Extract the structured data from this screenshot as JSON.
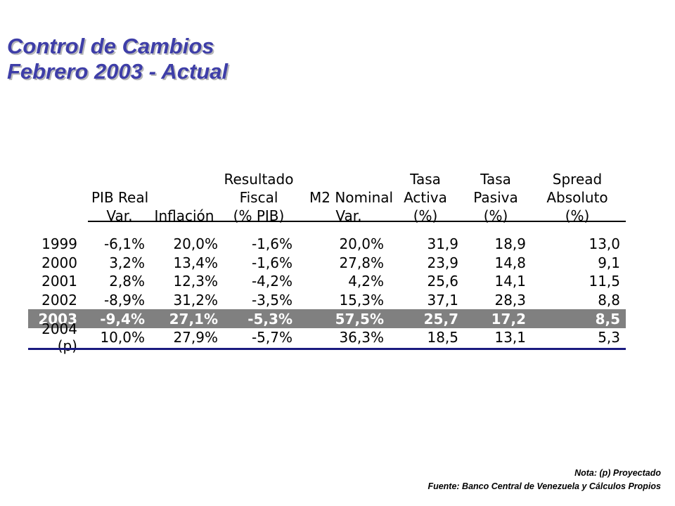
{
  "title": {
    "line1": "Control de Cambios",
    "line2": "Febrero 2003 - Actual"
  },
  "colors": {
    "title": "#3e3ea8",
    "highlight_row": "#808080",
    "bottom_rule": "#1a1a80"
  },
  "table": {
    "headers": [
      [
        "",
        "",
        ""
      ],
      [
        "",
        "PIB Real",
        "Var."
      ],
      [
        "",
        "",
        "Inflación"
      ],
      [
        "Resultado",
        "Fiscal",
        "(% PIB)"
      ],
      [
        "",
        "M2 Nominal",
        "Var."
      ],
      [
        "Tasa",
        "Activa",
        "(%)"
      ],
      [
        "Tasa",
        "Pasiva",
        "(%)"
      ],
      [
        "Spread",
        "Absoluto",
        "(%)"
      ]
    ],
    "rows": [
      [
        "1999",
        "-6,1%",
        "20,0%",
        "-1,6%",
        "20,0%",
        "31,9",
        "18,9",
        "13,0"
      ],
      [
        "2000",
        "3,2%",
        "13,4%",
        "-1,6%",
        "27,8%",
        "23,9",
        "14,8",
        "9,1"
      ],
      [
        "2001",
        "2,8%",
        "12,3%",
        "-4,2%",
        "4,2%",
        "25,6",
        "14,1",
        "11,5"
      ],
      [
        "2002",
        "-8,9%",
        "31,2%",
        "-3,5%",
        "15,3%",
        "37,1",
        "28,3",
        "8,8"
      ],
      [
        "2003",
        "-9,4%",
        "27,1%",
        "-5,3%",
        "57,5%",
        "25,7",
        "17,2",
        "8,5"
      ],
      [
        "2004 (p)",
        "10,0%",
        "27,9%",
        "-5,7%",
        "36,3%",
        "18,5",
        "13,1",
        "5,3"
      ]
    ],
    "highlight_row_index": 4
  },
  "notes": {
    "note": "Nota: (p) Proyectado",
    "source": "Fuente: Banco Central de Venezuela y Cálculos Propios"
  }
}
